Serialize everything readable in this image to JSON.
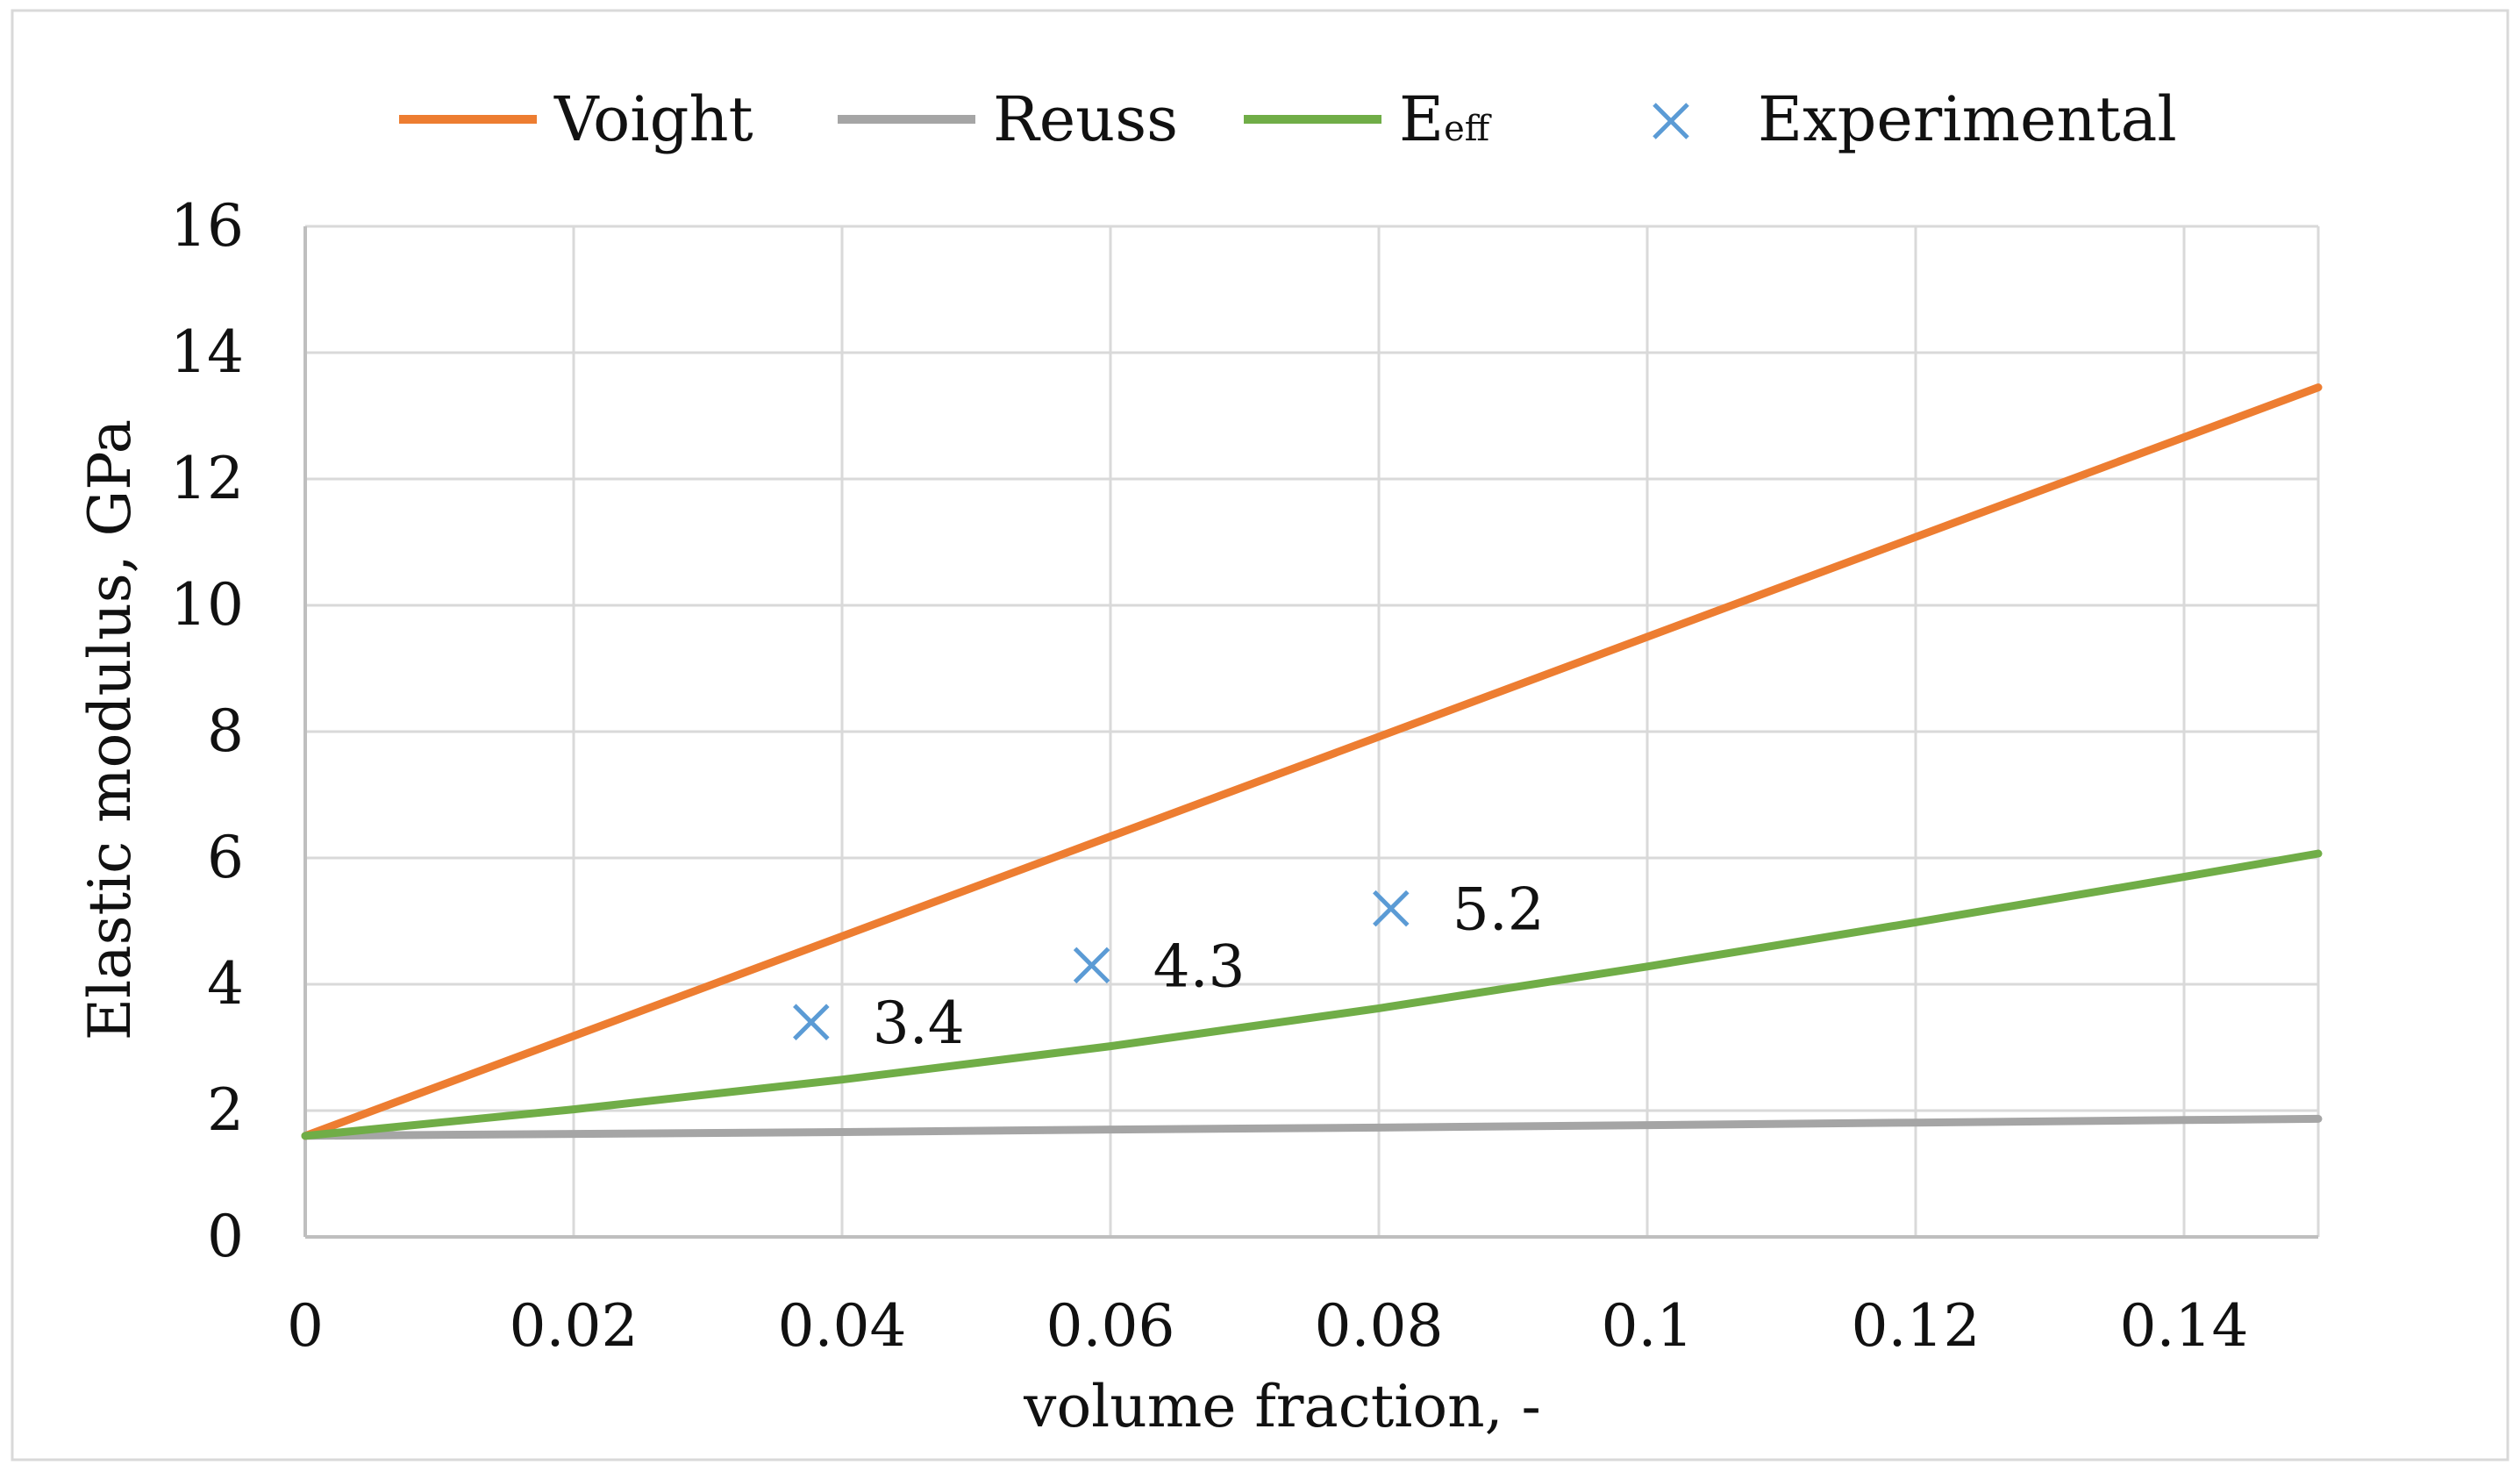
{
  "chart_data": {
    "type": "line",
    "xlabel": "volume fraction, -",
    "ylabel": "Elastic modulus, GPa",
    "xlim": [
      0,
      0.15
    ],
    "ylim": [
      0,
      16
    ],
    "x_ticks": [
      0,
      0.02,
      0.04,
      0.06,
      0.08,
      0.1,
      0.12,
      0.14
    ],
    "x_tick_labels": [
      "0",
      "0.02",
      "0.04",
      "0.06",
      "0.08",
      "0.1",
      "0.12",
      "0.14"
    ],
    "y_ticks": [
      0,
      2,
      4,
      6,
      8,
      10,
      12,
      14,
      16
    ],
    "y_tick_labels": [
      "0",
      "2",
      "4",
      "6",
      "8",
      "10",
      "12",
      "14",
      "16"
    ],
    "grid": true,
    "legend_position": "top",
    "series": [
      {
        "name": "Voight",
        "type": "line",
        "color": "#ED7D31",
        "x": [
          0,
          0.02,
          0.04,
          0.06,
          0.08,
          0.1,
          0.12,
          0.14,
          0.15
        ],
        "y": [
          1.6,
          3.18,
          4.76,
          6.34,
          7.92,
          9.5,
          11.08,
          12.66,
          13.45
        ]
      },
      {
        "name": "Reuss",
        "type": "line",
        "color": "#A5A5A5",
        "x": [
          0,
          0.02,
          0.04,
          0.06,
          0.08,
          0.1,
          0.12,
          0.14,
          0.15
        ],
        "y": [
          1.6,
          1.63,
          1.66,
          1.7,
          1.73,
          1.77,
          1.81,
          1.85,
          1.87
        ]
      },
      {
        "name": "Eeff",
        "legend_main": "E",
        "legend_sub": "eff",
        "type": "line",
        "color": "#70AD47",
        "x": [
          0,
          0.02,
          0.04,
          0.06,
          0.08,
          0.1,
          0.12,
          0.14,
          0.15
        ],
        "y": [
          1.6,
          2.02,
          2.49,
          3.02,
          3.62,
          4.28,
          4.98,
          5.7,
          6.07
        ]
      },
      {
        "name": "Experimental",
        "type": "scatter",
        "marker": "x",
        "color": "#5B9BD5",
        "x": [
          0.0377,
          0.0586,
          0.0809
        ],
        "y": [
          3.4,
          4.3,
          5.2
        ],
        "labels": [
          "3.4",
          "4.3",
          "5.2"
        ]
      }
    ]
  }
}
